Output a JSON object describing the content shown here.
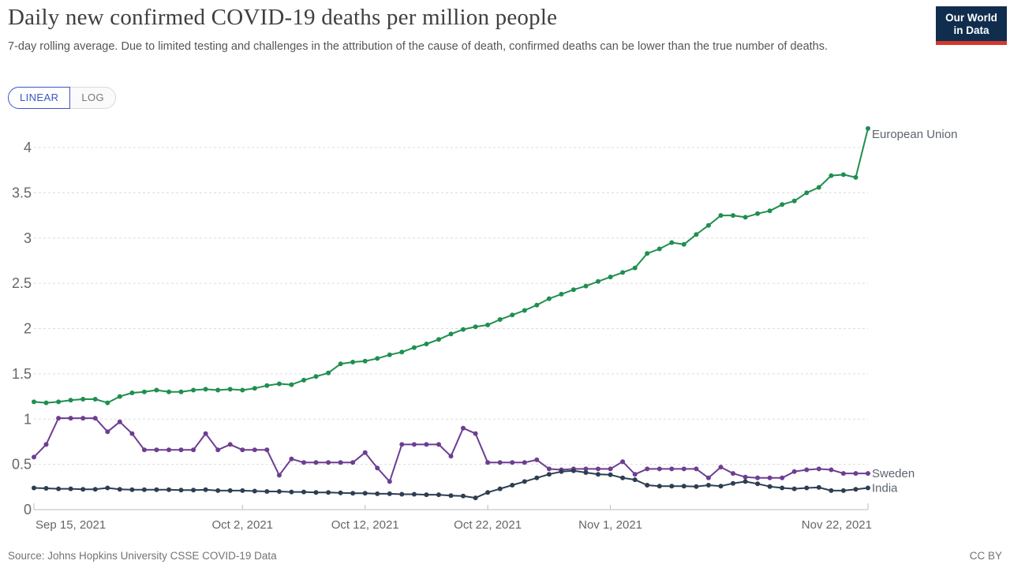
{
  "header": {
    "title": "Daily new confirmed COVID-19 deaths per million people",
    "subtitle": "7-day rolling average. Due to limited testing and challenges in the attribution of the cause of death, confirmed deaths can be lower than the true number of deaths."
  },
  "logo": {
    "line1": "Our World",
    "line2": "in Data",
    "bg_color": "#102d4e",
    "accent_color": "#d4382b"
  },
  "toolbar": {
    "linear_label": "LINEAR",
    "log_label": "LOG",
    "active": "LINEAR",
    "active_color": "#3a56c4"
  },
  "footer": {
    "source": "Source: Johns Hopkins University CSSE COVID-19 Data",
    "license": "CC BY"
  },
  "chart_data": {
    "type": "line",
    "title": "Daily new confirmed COVID-19 deaths per million people",
    "x_start_date": "2021-09-15",
    "x_end_date": "2021-11-22",
    "frequency": "daily",
    "x_tick_labels": [
      "Sep 15, 2021",
      "Oct 2, 2021",
      "Oct 12, 2021",
      "Oct 22, 2021",
      "Nov 1, 2021",
      "Nov 22, 2021"
    ],
    "x_tick_day_index": [
      0,
      17,
      27,
      37,
      47,
      68
    ],
    "y_ticks": [
      0,
      0.5,
      1,
      1.5,
      2,
      2.5,
      3,
      3.5,
      4
    ],
    "ylim": [
      0,
      4.35
    ],
    "grid": "dashed-horizontal",
    "legend_position": "end-of-line-labels",
    "series": [
      {
        "name": "European Union",
        "color": "#1f8f4f",
        "values": [
          1.19,
          1.18,
          1.19,
          1.21,
          1.22,
          1.22,
          1.18,
          1.25,
          1.29,
          1.3,
          1.32,
          1.3,
          1.3,
          1.32,
          1.33,
          1.32,
          1.33,
          1.32,
          1.34,
          1.37,
          1.39,
          1.38,
          1.43,
          1.47,
          1.51,
          1.61,
          1.63,
          1.64,
          1.67,
          1.71,
          1.74,
          1.79,
          1.83,
          1.88,
          1.94,
          1.99,
          2.02,
          2.04,
          2.1,
          2.15,
          2.2,
          2.26,
          2.33,
          2.38,
          2.43,
          2.47,
          2.52,
          2.57,
          2.62,
          2.67,
          2.83,
          2.88,
          2.95,
          2.93,
          3.04,
          3.14,
          3.25,
          3.25,
          3.23,
          3.27,
          3.3,
          3.37,
          3.41,
          3.5,
          3.56,
          3.69,
          3.7,
          3.67,
          4.21
        ]
      },
      {
        "name": "Sweden",
        "color": "#6d3e91",
        "values": [
          0.58,
          0.72,
          1.01,
          1.01,
          1.01,
          1.01,
          0.86,
          0.97,
          0.84,
          0.66,
          0.66,
          0.66,
          0.66,
          0.66,
          0.84,
          0.66,
          0.72,
          0.66,
          0.66,
          0.66,
          0.38,
          0.56,
          0.52,
          0.52,
          0.52,
          0.52,
          0.52,
          0.63,
          0.46,
          0.31,
          0.72,
          0.72,
          0.72,
          0.72,
          0.59,
          0.9,
          0.84,
          0.52,
          0.52,
          0.52,
          0.52,
          0.55,
          0.45,
          0.44,
          0.45,
          0.45,
          0.45,
          0.45,
          0.53,
          0.39,
          0.45,
          0.45,
          0.45,
          0.45,
          0.45,
          0.35,
          0.47,
          0.4,
          0.36,
          0.35,
          0.35,
          0.35,
          0.42,
          0.44,
          0.45,
          0.44,
          0.4,
          0.4,
          0.4
        ]
      },
      {
        "name": "India",
        "color": "#2d3e52",
        "values": [
          0.24,
          0.235,
          0.23,
          0.23,
          0.225,
          0.225,
          0.24,
          0.225,
          0.22,
          0.22,
          0.22,
          0.22,
          0.215,
          0.215,
          0.22,
          0.21,
          0.21,
          0.21,
          0.205,
          0.2,
          0.2,
          0.195,
          0.195,
          0.19,
          0.19,
          0.185,
          0.18,
          0.18,
          0.175,
          0.175,
          0.17,
          0.17,
          0.165,
          0.165,
          0.155,
          0.15,
          0.13,
          0.19,
          0.23,
          0.27,
          0.31,
          0.35,
          0.39,
          0.42,
          0.43,
          0.41,
          0.39,
          0.385,
          0.35,
          0.33,
          0.27,
          0.26,
          0.26,
          0.26,
          0.255,
          0.27,
          0.26,
          0.29,
          0.31,
          0.285,
          0.255,
          0.24,
          0.23,
          0.24,
          0.245,
          0.21,
          0.21,
          0.225,
          0.24
        ]
      }
    ]
  }
}
